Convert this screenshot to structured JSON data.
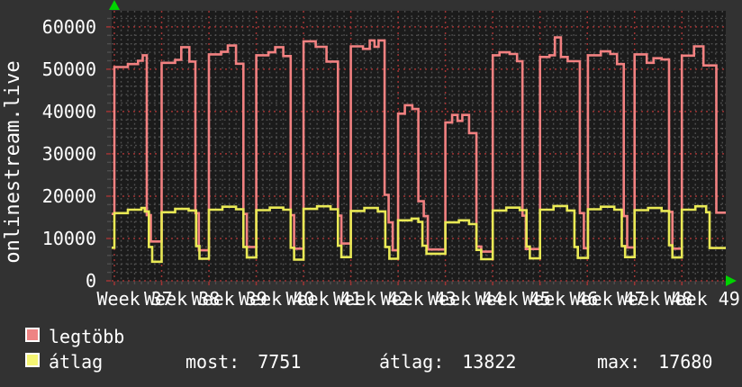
{
  "title": "onlinestream.live",
  "colors": {
    "background": "#323232",
    "plot_background": "#1b1b1b",
    "grid_minor": "#4f4f4f",
    "grid_major": "#a03434",
    "series_legtobb": "#f28181",
    "series_atlag": "#e9e955",
    "text": "#ffffff",
    "axis_arrow": "#00d400",
    "legend_swatch_legtobb": "#ee8383",
    "legend_swatch_atlag": "#f5f573"
  },
  "y_axis": {
    "tick_labels": [
      "0",
      "10000",
      "20000",
      "30000",
      "40000",
      "50000",
      "60000"
    ],
    "tick_values": [
      0,
      10000,
      20000,
      30000,
      40000,
      50000,
      60000
    ]
  },
  "x_axis": {
    "labels": [
      "Week 37",
      "Week 38",
      "Week 39",
      "Week 40",
      "Week 41",
      "Week 42",
      "Week 43",
      "Week 44",
      "Week 45",
      "Week 46",
      "Week 47",
      "Week 48",
      "Week 49"
    ]
  },
  "legend": [
    {
      "label": "legtöbb",
      "swatch_color": "#ee8383"
    },
    {
      "label": "átlag",
      "swatch_color": "#f5f573"
    }
  ],
  "stats": [
    {
      "label": "most:",
      "value": "7751"
    },
    {
      "label": "átlag:",
      "value": "13822"
    },
    {
      "label": "max:",
      "value": "17680"
    }
  ],
  "chart_data": {
    "type": "line",
    "line_style": "step-after",
    "title": "onlinestream.live",
    "xlabel": "",
    "ylabel": "onlinestream.live",
    "x_unit": "days",
    "x_range": [
      0,
      90.9
    ],
    "ylim": [
      0,
      63800
    ],
    "y_ticks": [
      0,
      10000,
      20000,
      30000,
      40000,
      50000,
      60000
    ],
    "x_tick_labels": [
      "Week 37",
      "Week 38",
      "Week 39",
      "Week 40",
      "Week 41",
      "Week 42",
      "Week 43",
      "Week 44",
      "Week 45",
      "Week 46",
      "Week 47",
      "Week 48",
      "Week 49"
    ],
    "grid": {
      "on": true,
      "minor_x_days": 1,
      "major_x_days": 7,
      "first_week_day": 0.4,
      "minor_y": 2000,
      "major_y": 10000
    },
    "legend_position": "bottom-left",
    "series": [
      {
        "name": "legtöbb",
        "color": "#f28181",
        "points": [
          [
            0,
            15800
          ],
          [
            0.4,
            50500
          ],
          [
            2.4,
            51200
          ],
          [
            3.9,
            52000
          ],
          [
            4.6,
            53300
          ],
          [
            5.2,
            15500
          ],
          [
            5.8,
            9300
          ],
          [
            7.4,
            51500
          ],
          [
            9.4,
            52200
          ],
          [
            10.3,
            55200
          ],
          [
            11.5,
            51800
          ],
          [
            12.4,
            16000
          ],
          [
            12.9,
            7200
          ],
          [
            14.4,
            53500
          ],
          [
            16.2,
            54100
          ],
          [
            17.2,
            55600
          ],
          [
            18.4,
            51300
          ],
          [
            19.5,
            15800
          ],
          [
            20.0,
            8000
          ],
          [
            21.4,
            53300
          ],
          [
            23.2,
            54000
          ],
          [
            24.2,
            55200
          ],
          [
            25.4,
            53100
          ],
          [
            26.5,
            15500
          ],
          [
            27.0,
            7600
          ],
          [
            28.4,
            56600
          ],
          [
            30.2,
            55300
          ],
          [
            31.8,
            51800
          ],
          [
            33.5,
            15400
          ],
          [
            34.0,
            8800
          ],
          [
            35.4,
            55400
          ],
          [
            37.2,
            54800
          ],
          [
            38.2,
            56800
          ],
          [
            38.9,
            55300
          ],
          [
            39.5,
            56800
          ],
          [
            40.4,
            20300
          ],
          [
            41.0,
            13800
          ],
          [
            41.6,
            7200
          ],
          [
            42.4,
            39500
          ],
          [
            43.4,
            41500
          ],
          [
            44.5,
            40600
          ],
          [
            45.4,
            18800
          ],
          [
            46.2,
            15300
          ],
          [
            46.8,
            7400
          ],
          [
            49.4,
            37400
          ],
          [
            50.4,
            39200
          ],
          [
            51.2,
            37800
          ],
          [
            51.9,
            39200
          ],
          [
            52.9,
            34900
          ],
          [
            54.0,
            8100
          ],
          [
            54.7,
            6900
          ],
          [
            56.4,
            53300
          ],
          [
            57.4,
            54000
          ],
          [
            58.9,
            53600
          ],
          [
            60.0,
            51900
          ],
          [
            60.8,
            15400
          ],
          [
            61.3,
            7500
          ],
          [
            63.4,
            52900
          ],
          [
            64.8,
            53300
          ],
          [
            65.6,
            57500
          ],
          [
            66.5,
            52900
          ],
          [
            67.5,
            51900
          ],
          [
            69.3,
            16000
          ],
          [
            69.9,
            7700
          ],
          [
            70.5,
            53300
          ],
          [
            72.4,
            54200
          ],
          [
            73.8,
            53600
          ],
          [
            74.8,
            51200
          ],
          [
            75.8,
            15300
          ],
          [
            76.3,
            7900
          ],
          [
            77.4,
            53500
          ],
          [
            79.2,
            51500
          ],
          [
            80.2,
            52600
          ],
          [
            81.4,
            52300
          ],
          [
            82.5,
            16300
          ],
          [
            83.0,
            7600
          ],
          [
            84.4,
            53200
          ],
          [
            86.2,
            55400
          ],
          [
            87.6,
            50900
          ],
          [
            89.5,
            16100
          ]
        ]
      },
      {
        "name": "átlag",
        "color": "#e9e955",
        "points": [
          [
            0,
            7800
          ],
          [
            0.4,
            16000
          ],
          [
            2.4,
            16800
          ],
          [
            4.4,
            17200
          ],
          [
            4.9,
            16400
          ],
          [
            5.5,
            8000
          ],
          [
            6.0,
            4500
          ],
          [
            7.4,
            16200
          ],
          [
            9.4,
            17000
          ],
          [
            11.4,
            16600
          ],
          [
            12.5,
            8200
          ],
          [
            13.0,
            5200
          ],
          [
            14.4,
            16800
          ],
          [
            16.4,
            17500
          ],
          [
            18.4,
            16900
          ],
          [
            19.5,
            8000
          ],
          [
            20.0,
            5500
          ],
          [
            21.4,
            16700
          ],
          [
            23.4,
            17300
          ],
          [
            25.4,
            16800
          ],
          [
            26.5,
            7800
          ],
          [
            27.0,
            5000
          ],
          [
            28.4,
            17000
          ],
          [
            30.4,
            17600
          ],
          [
            32.4,
            16900
          ],
          [
            33.5,
            8300
          ],
          [
            34.0,
            5600
          ],
          [
            35.4,
            16500
          ],
          [
            37.4,
            17200
          ],
          [
            39.4,
            16400
          ],
          [
            40.5,
            8000
          ],
          [
            41.1,
            5200
          ],
          [
            42.4,
            14300
          ],
          [
            44.4,
            14700
          ],
          [
            45.4,
            13900
          ],
          [
            46.0,
            8300
          ],
          [
            46.6,
            6400
          ],
          [
            49.4,
            13800
          ],
          [
            51.4,
            14300
          ],
          [
            52.9,
            13400
          ],
          [
            54.0,
            7300
          ],
          [
            54.7,
            5100
          ],
          [
            56.4,
            16600
          ],
          [
            58.4,
            17300
          ],
          [
            60.4,
            16700
          ],
          [
            61.4,
            8100
          ],
          [
            61.9,
            5300
          ],
          [
            63.4,
            16800
          ],
          [
            65.4,
            17680
          ],
          [
            67.4,
            16600
          ],
          [
            68.5,
            8000
          ],
          [
            69.0,
            5400
          ],
          [
            70.5,
            16900
          ],
          [
            72.4,
            17500
          ],
          [
            74.4,
            16800
          ],
          [
            75.5,
            8200
          ],
          [
            76.0,
            5600
          ],
          [
            77.4,
            16700
          ],
          [
            79.4,
            17200
          ],
          [
            81.4,
            16500
          ],
          [
            82.5,
            8400
          ],
          [
            83.0,
            5500
          ],
          [
            84.4,
            16800
          ],
          [
            86.4,
            17600
          ],
          [
            88.0,
            16200
          ],
          [
            88.5,
            7751
          ]
        ]
      }
    ]
  }
}
